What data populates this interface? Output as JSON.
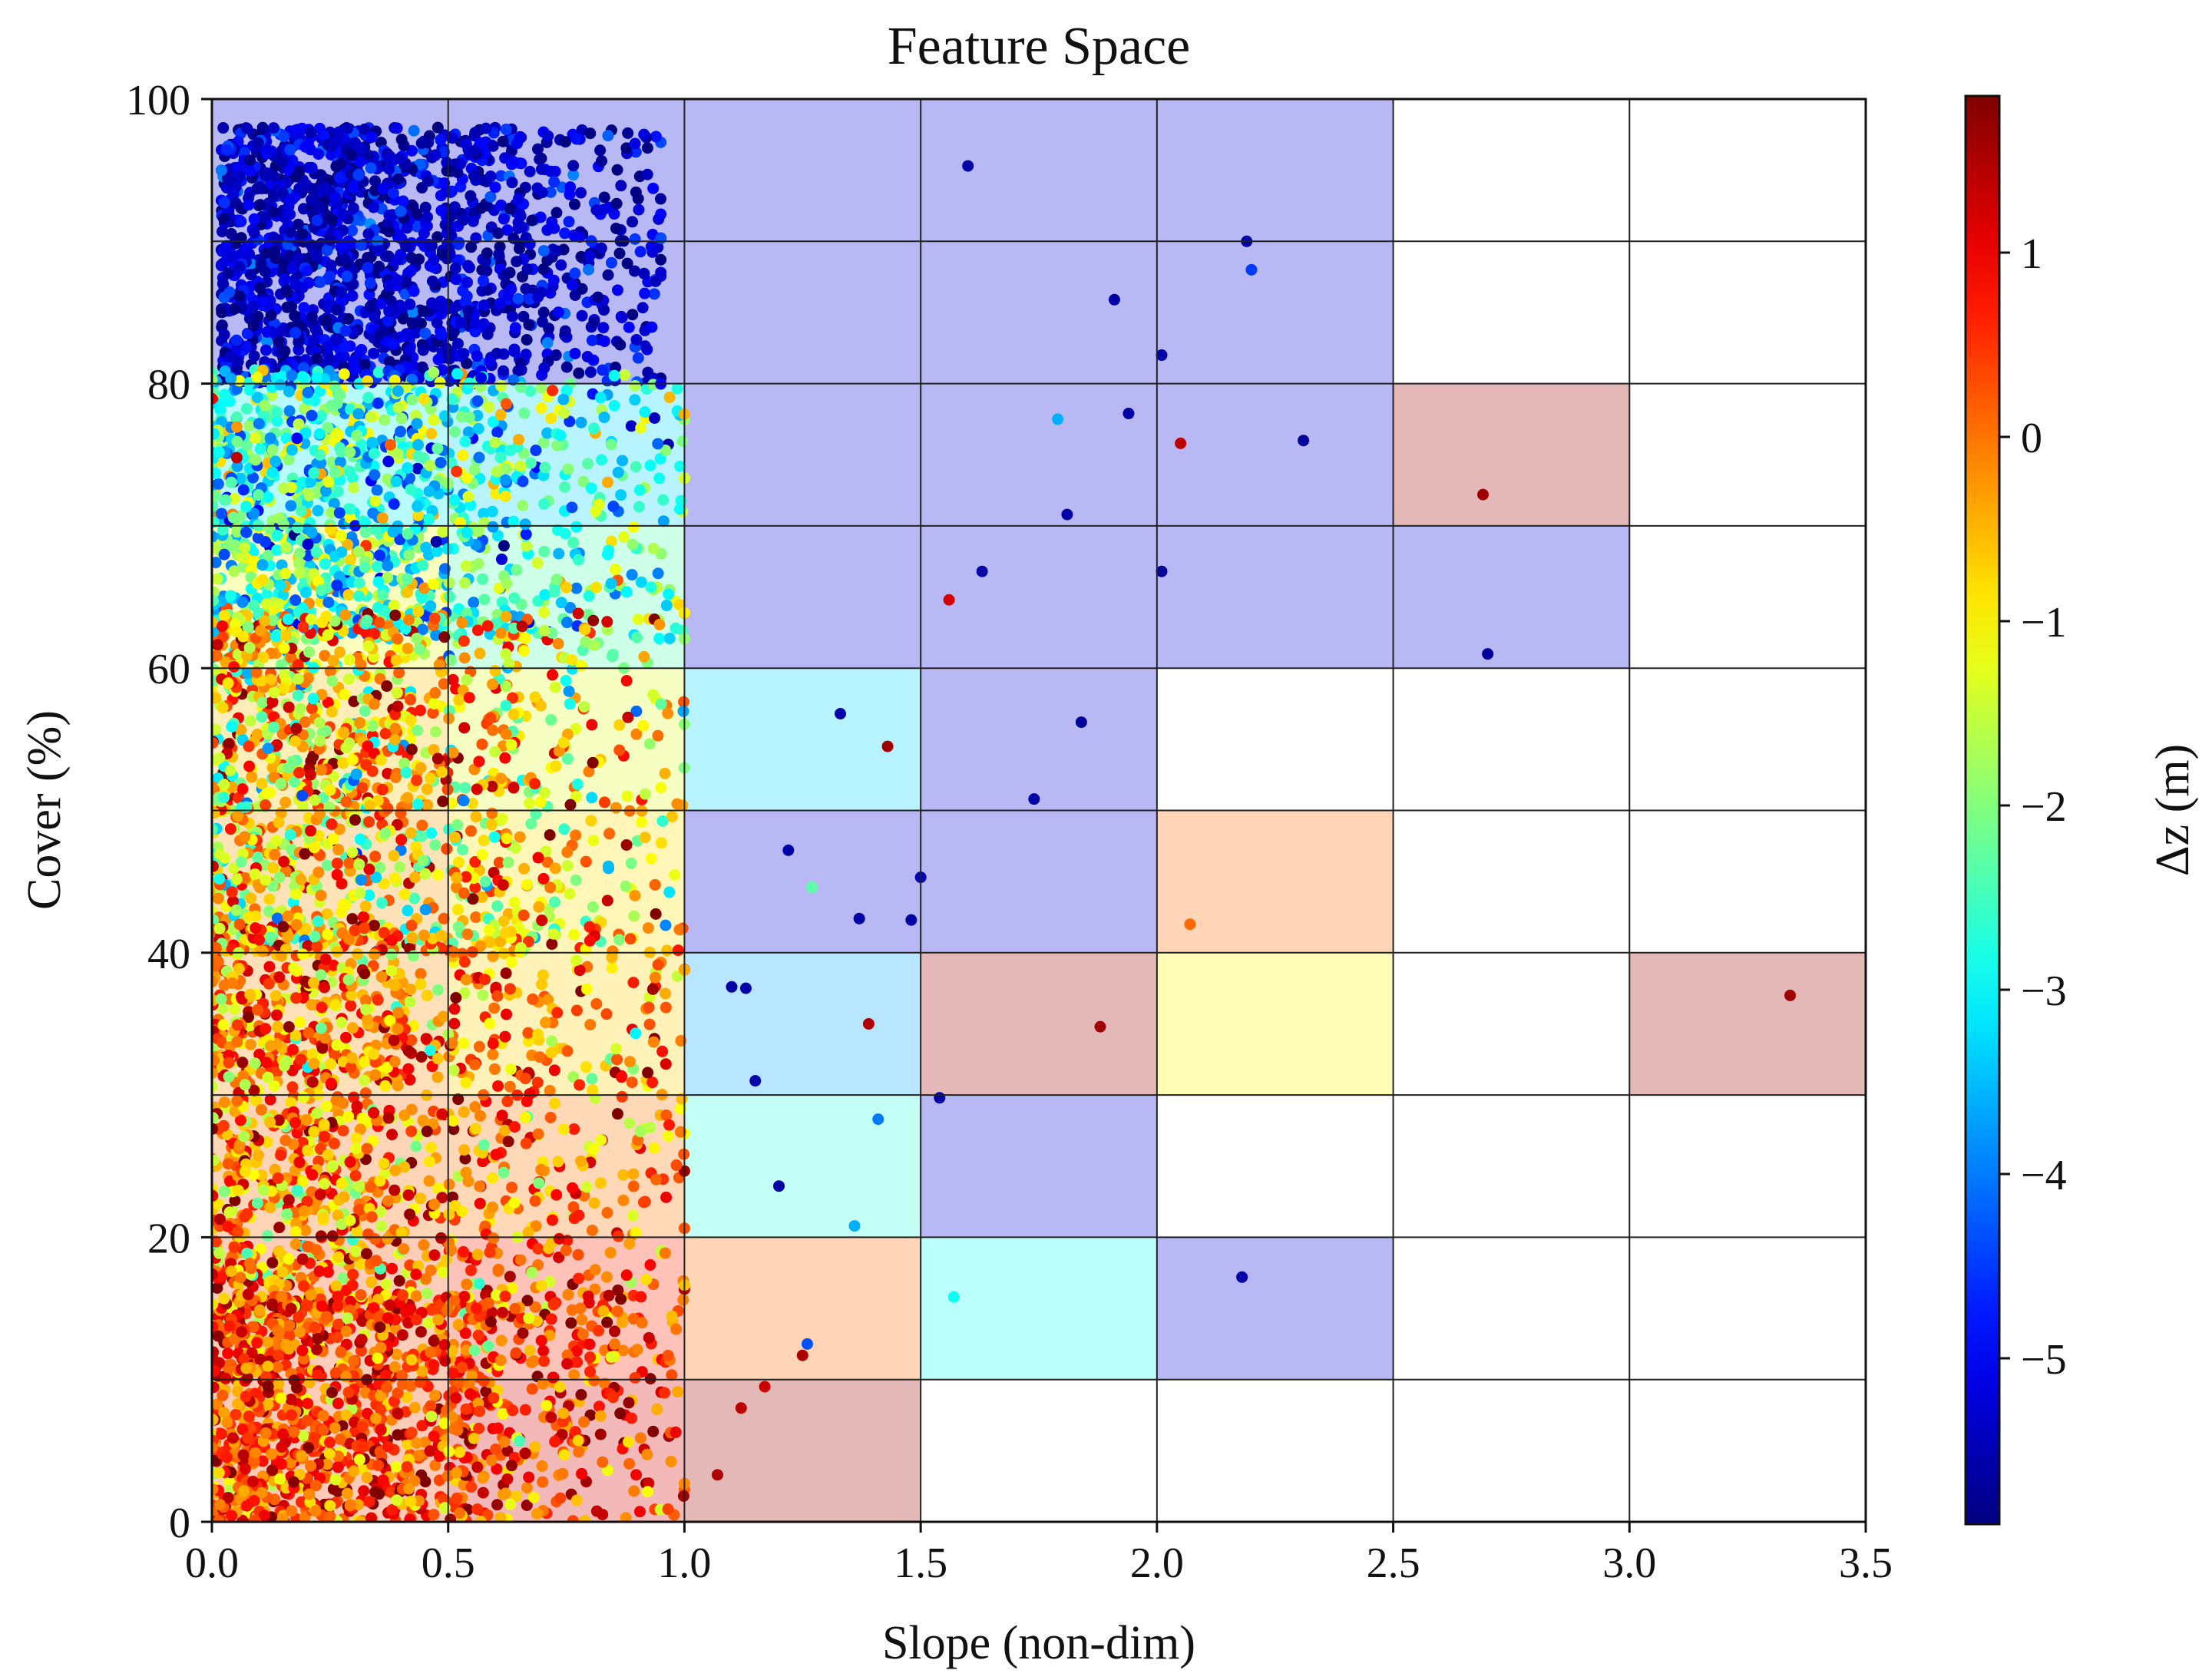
{
  "chart_data": {
    "type": "scatter",
    "title": "Feature Space",
    "xlabel": "Slope (non-dim)",
    "ylabel": "Cover (%)",
    "colorbar_label": "Δz (m)",
    "xlim": [
      0,
      3.5
    ],
    "ylim": [
      0,
      100
    ],
    "xticks": [
      "0.0",
      "0.5",
      "1.0",
      "1.5",
      "2.0",
      "2.5",
      "3.0",
      "3.5"
    ],
    "yticks": [
      "0",
      "20",
      "40",
      "60",
      "80",
      "100"
    ],
    "colorbar_range": [
      -5.9,
      1.85
    ],
    "colorbar_ticks": [
      "1",
      "0",
      "−1",
      "−2",
      "−3",
      "−4",
      "−5"
    ],
    "colorbar_tick_values": [
      1,
      0,
      -1,
      -2,
      -3,
      -4,
      -5
    ],
    "colormap": "jet",
    "grid": true,
    "bin_width_x": 0.5,
    "bin_height_y": 10,
    "bins": [
      {
        "x0": 0.0,
        "y0": 90,
        "dz": -5.2
      },
      {
        "x0": 0.5,
        "y0": 90,
        "dz": -5.2
      },
      {
        "x0": 1.0,
        "y0": 90,
        "dz": -5.2
      },
      {
        "x0": 1.5,
        "y0": 90,
        "dz": -5.2
      },
      {
        "x0": 2.0,
        "y0": 90,
        "dz": -5.2
      },
      {
        "x0": 0.0,
        "y0": 80,
        "dz": -5.2
      },
      {
        "x0": 0.5,
        "y0": 80,
        "dz": -5.2
      },
      {
        "x0": 1.0,
        "y0": 80,
        "dz": -5.2
      },
      {
        "x0": 1.5,
        "y0": 80,
        "dz": -5.2
      },
      {
        "x0": 2.0,
        "y0": 80,
        "dz": -5.2
      },
      {
        "x0": 0.0,
        "y0": 70,
        "dz": -3.1
      },
      {
        "x0": 0.5,
        "y0": 70,
        "dz": -3.3
      },
      {
        "x0": 1.0,
        "y0": 70,
        "dz": -5.2
      },
      {
        "x0": 1.5,
        "y0": 70,
        "dz": -5.2
      },
      {
        "x0": 2.0,
        "y0": 70,
        "dz": -5.2
      },
      {
        "x0": 2.5,
        "y0": 70,
        "dz": 1.6
      },
      {
        "x0": 0.0,
        "y0": 60,
        "dz": -1.2
      },
      {
        "x0": 0.5,
        "y0": 60,
        "dz": -2.4
      },
      {
        "x0": 1.0,
        "y0": 60,
        "dz": -5.2
      },
      {
        "x0": 1.5,
        "y0": 60,
        "dz": -5.2
      },
      {
        "x0": 2.0,
        "y0": 60,
        "dz": -5.2
      },
      {
        "x0": 2.5,
        "y0": 60,
        "dz": -5.2
      },
      {
        "x0": 0.0,
        "y0": 50,
        "dz": -0.6
      },
      {
        "x0": 0.5,
        "y0": 50,
        "dz": -1.3
      },
      {
        "x0": 1.0,
        "y0": 50,
        "dz": -3.3
      },
      {
        "x0": 1.5,
        "y0": 50,
        "dz": -5.2
      },
      {
        "x0": 0.0,
        "y0": 40,
        "dz": -0.3
      },
      {
        "x0": 0.5,
        "y0": 40,
        "dz": -0.8
      },
      {
        "x0": 1.0,
        "y0": 40,
        "dz": -5.2
      },
      {
        "x0": 1.5,
        "y0": 40,
        "dz": -5.2
      },
      {
        "x0": 2.0,
        "y0": 40,
        "dz": 0.1
      },
      {
        "x0": 0.0,
        "y0": 30,
        "dz": -0.2
      },
      {
        "x0": 0.5,
        "y0": 30,
        "dz": -0.7
      },
      {
        "x0": 1.0,
        "y0": 30,
        "dz": -3.7
      },
      {
        "x0": 1.5,
        "y0": 30,
        "dz": 1.6
      },
      {
        "x0": 2.0,
        "y0": 30,
        "dz": -1.0
      },
      {
        "x0": 3.0,
        "y0": 30,
        "dz": 1.6
      },
      {
        "x0": 0.0,
        "y0": 20,
        "dz": 0.1
      },
      {
        "x0": 0.5,
        "y0": 20,
        "dz": 0.0
      },
      {
        "x0": 1.0,
        "y0": 20,
        "dz": -2.7
      },
      {
        "x0": 1.5,
        "y0": 20,
        "dz": -5.2
      },
      {
        "x0": 0.0,
        "y0": 10,
        "dz": 0.3
      },
      {
        "x0": 0.5,
        "y0": 10,
        "dz": 0.6
      },
      {
        "x0": 1.0,
        "y0": 10,
        "dz": 0.1
      },
      {
        "x0": 1.5,
        "y0": 10,
        "dz": -2.9
      },
      {
        "x0": 2.0,
        "y0": 10,
        "dz": -5.2
      },
      {
        "x0": 0.0,
        "y0": 0,
        "dz": 0.4
      },
      {
        "x0": 0.5,
        "y0": 0,
        "dz": 1.2
      },
      {
        "x0": 1.0,
        "y0": 0,
        "dz": 1.6
      }
    ],
    "clusters": [
      {
        "x": [
          0.02,
          0.95
        ],
        "y": [
          80,
          98
        ],
        "x_peak": 0.2,
        "count": 1600,
        "dz_mean": -5.3,
        "dz_sd": 0.5
      },
      {
        "x": [
          0.0,
          1.0
        ],
        "y": [
          62,
          81
        ],
        "x_peak": 0.1,
        "count": 1200,
        "dz_mean": -2.6,
        "dz_sd": 1.2
      },
      {
        "x": [
          0.0,
          1.0
        ],
        "y": [
          40,
          64
        ],
        "x_peak": 0.05,
        "count": 1300,
        "dz_mean": -0.8,
        "dz_sd": 1.3
      },
      {
        "x": [
          0.0,
          1.0
        ],
        "y": [
          14,
          42
        ],
        "x_peak": 0.05,
        "count": 1500,
        "dz_mean": -0.1,
        "dz_sd": 1.0
      },
      {
        "x": [
          0.0,
          1.0
        ],
        "y": [
          0,
          16
        ],
        "x_peak": 0.08,
        "count": 1300,
        "dz_mean": 0.4,
        "dz_sd": 0.8
      }
    ],
    "points": [
      {
        "x": 2.69,
        "y": 72.2,
        "dz": 1.6
      },
      {
        "x": 2.7,
        "y": 61.0,
        "dz": -5.7
      },
      {
        "x": 3.34,
        "y": 37.0,
        "dz": 1.6
      },
      {
        "x": 1.88,
        "y": 34.8,
        "dz": 1.6
      },
      {
        "x": 2.07,
        "y": 42.0,
        "dz": 0.1
      },
      {
        "x": 2.18,
        "y": 17.2,
        "dz": -5.6
      },
      {
        "x": 2.31,
        "y": 76.0,
        "dz": -5.7
      },
      {
        "x": 2.05,
        "y": 75.8,
        "dz": 1.4
      },
      {
        "x": 2.01,
        "y": 66.8,
        "dz": -5.7
      },
      {
        "x": 1.84,
        "y": 56.2,
        "dz": -5.7
      },
      {
        "x": 1.74,
        "y": 50.8,
        "dz": -5.6
      },
      {
        "x": 1.57,
        "y": 15.8,
        "dz": -2.9
      },
      {
        "x": 1.54,
        "y": 29.8,
        "dz": -5.6
      },
      {
        "x": 1.5,
        "y": 45.3,
        "dz": -5.5
      },
      {
        "x": 1.43,
        "y": 54.5,
        "dz": 1.6
      },
      {
        "x": 1.41,
        "y": 28.3,
        "dz": -4.0
      },
      {
        "x": 1.39,
        "y": 35.0,
        "dz": 1.5
      },
      {
        "x": 1.56,
        "y": 64.8,
        "dz": 1.2
      },
      {
        "x": 1.63,
        "y": 66.8,
        "dz": -5.6
      },
      {
        "x": 1.79,
        "y": 77.5,
        "dz": -3.6
      },
      {
        "x": 1.94,
        "y": 77.9,
        "dz": -5.6
      },
      {
        "x": 2.19,
        "y": 90.0,
        "dz": -5.6
      },
      {
        "x": 2.2,
        "y": 88.0,
        "dz": -4.5
      },
      {
        "x": 1.6,
        "y": 95.3,
        "dz": -5.6
      },
      {
        "x": 2.01,
        "y": 82.0,
        "dz": -5.6
      },
      {
        "x": 1.91,
        "y": 85.9,
        "dz": -5.6
      },
      {
        "x": 1.81,
        "y": 70.8,
        "dz": -5.6
      },
      {
        "x": 1.12,
        "y": 8.0,
        "dz": 1.4
      },
      {
        "x": 1.07,
        "y": 3.3,
        "dz": 1.5
      },
      {
        "x": 1.17,
        "y": 9.5,
        "dz": 1.3
      },
      {
        "x": 1.26,
        "y": 12.5,
        "dz": -4.3
      },
      {
        "x": 1.25,
        "y": 11.7,
        "dz": 1.5
      },
      {
        "x": 1.36,
        "y": 20.8,
        "dz": -3.6
      },
      {
        "x": 1.27,
        "y": 44.6,
        "dz": -2.3
      },
      {
        "x": 1.37,
        "y": 42.4,
        "dz": -5.6
      },
      {
        "x": 1.33,
        "y": 56.8,
        "dz": -5.6
      },
      {
        "x": 1.1,
        "y": 37.6,
        "dz": -5.6
      },
      {
        "x": 1.13,
        "y": 37.5,
        "dz": -5.6
      },
      {
        "x": 1.15,
        "y": 31.0,
        "dz": -5.6
      },
      {
        "x": 1.2,
        "y": 23.6,
        "dz": -5.6
      },
      {
        "x": 1.48,
        "y": 42.3,
        "dz": -5.6
      },
      {
        "x": 1.22,
        "y": 47.2,
        "dz": -5.6
      }
    ]
  }
}
